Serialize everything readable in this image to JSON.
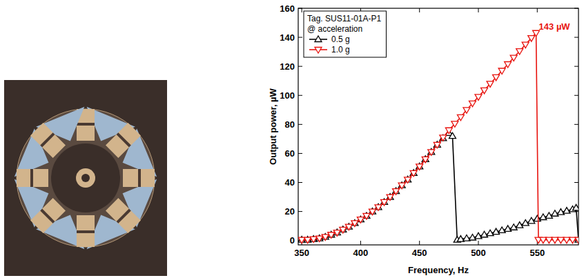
{
  "chart_data": {
    "type": "line",
    "x_label": "Frequency, Hz",
    "y_label": "Output power, µW",
    "legend_title": [
      "Tag. SUS11-01A-P1",
      "@ acceleration"
    ],
    "legend": "upper left",
    "grid": false,
    "xlim": [
      347,
      585
    ],
    "xticks": [
      350,
      400,
      450,
      500,
      550
    ],
    "ylim": [
      -3,
      160
    ],
    "yticks": [
      0,
      20,
      40,
      60,
      80,
      100,
      120,
      140,
      160
    ],
    "annotations": [
      {
        "text": "143 µW",
        "x": 549,
        "y": 143,
        "color": "#e8140f"
      }
    ],
    "series": [
      {
        "name": "0.5 g",
        "color": "#000000",
        "marker": "triangle-up",
        "line_style": "solid",
        "x": [
          350,
          355,
          360,
          365,
          370,
          375,
          380,
          385,
          390,
          395,
          400,
          405,
          410,
          415,
          420,
          425,
          430,
          435,
          440,
          445,
          450,
          455,
          460,
          465,
          470,
          475,
          478,
          482,
          485,
          490,
          495,
          500,
          505,
          510,
          515,
          520,
          525,
          530,
          535,
          540,
          545,
          550,
          555,
          560,
          565,
          570,
          575,
          580,
          583,
          585
        ],
        "values": [
          0.5,
          0.5,
          1,
          1.5,
          2.5,
          4,
          5.5,
          7.5,
          9.5,
          12,
          14.5,
          17,
          20,
          23,
          26.5,
          30,
          34,
          38,
          42,
          46.5,
          51,
          56,
          61,
          66,
          70.5,
          74,
          72,
          0.5,
          1,
          1.5,
          2,
          3,
          4,
          5,
          6,
          7,
          8,
          9,
          10.5,
          12,
          13.5,
          15,
          16,
          17,
          18.5,
          19.5,
          20.5,
          21.5,
          22.5,
          0.5
        ]
      },
      {
        "name": "1.0 g",
        "color": "#e8140f",
        "marker": "triangle-down",
        "line_style": "solid",
        "x": [
          350,
          355,
          360,
          365,
          370,
          375,
          380,
          385,
          390,
          395,
          400,
          405,
          410,
          415,
          420,
          425,
          430,
          435,
          440,
          445,
          450,
          455,
          460,
          465,
          470,
          475,
          480,
          485,
          490,
          495,
          500,
          505,
          510,
          515,
          520,
          525,
          530,
          535,
          540,
          545,
          549,
          551,
          555,
          560,
          565,
          570,
          575,
          580,
          585
        ],
        "values": [
          0.5,
          0.5,
          1,
          1.5,
          2.5,
          4,
          5.5,
          7.5,
          9.5,
          12,
          14.5,
          17,
          20,
          23,
          26.5,
          30,
          34,
          38,
          42,
          46.5,
          51,
          56,
          61,
          66,
          71,
          76,
          80.5,
          85,
          90,
          94.5,
          99,
          103.5,
          108,
          112.5,
          117,
          121.5,
          126,
          130.5,
          135,
          139.5,
          143,
          0.5,
          0.5,
          0.5,
          0.5,
          0.5,
          0.5,
          0.5,
          0.5
        ]
      }
    ]
  }
}
